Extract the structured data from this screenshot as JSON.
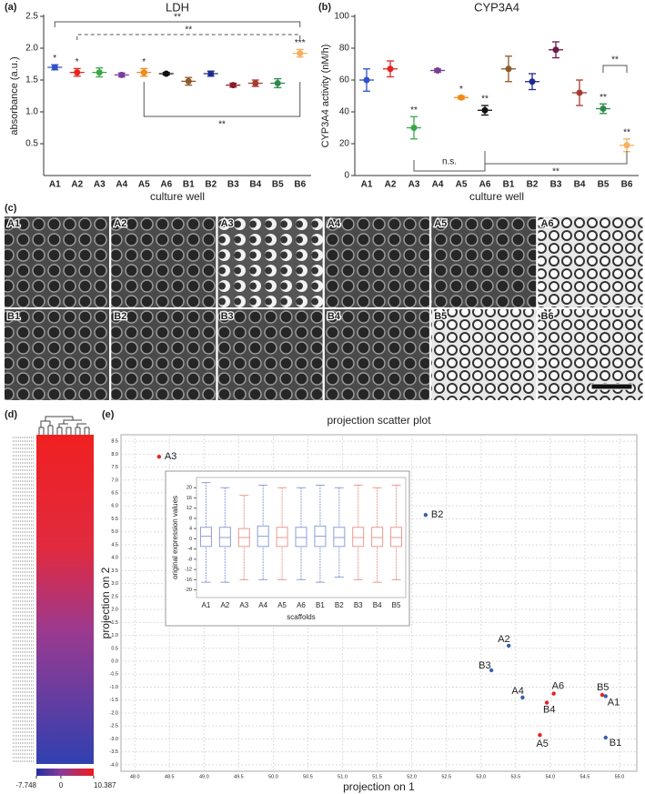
{
  "chart_data": [
    {
      "type": "errorbar",
      "panel": "(a)",
      "title": "LDH",
      "x_label": "culture well",
      "y_label": "absorbance (a.u.)",
      "categories": [
        "A1",
        "A2",
        "A3",
        "A4",
        "A5",
        "A6",
        "B1",
        "B2",
        "B3",
        "B4",
        "B5",
        "B6"
      ],
      "values": [
        1.7,
        1.62,
        1.62,
        1.58,
        1.62,
        1.6,
        1.48,
        1.6,
        1.42,
        1.45,
        1.45,
        1.92
      ],
      "errors": [
        0.04,
        0.06,
        0.07,
        0.03,
        0.06,
        0.02,
        0.06,
        0.04,
        0.03,
        0.05,
        0.07,
        0.06
      ],
      "colors": [
        "#2f52c8",
        "#e52420",
        "#3aa64a",
        "#7a3c9a",
        "#f08a1c",
        "#111111",
        "#8c5a2a",
        "#1e2a8c",
        "#8a1a2a",
        "#a83a30",
        "#2a8a4a",
        "#f5b060"
      ],
      "significance": [
        "*",
        "*",
        null,
        null,
        "*",
        null,
        null,
        null,
        null,
        null,
        null,
        "***"
      ],
      "brackets": [
        {
          "from": 0,
          "to": 11,
          "label": "**"
        },
        {
          "from": 1,
          "to": 11,
          "label": "**",
          "dashed": true
        },
        {
          "from": 4,
          "to": 11,
          "label": "**"
        }
      ],
      "ylim": [
        0,
        2.5
      ],
      "yticks": [
        0.5,
        {
          "value": 1,
          "label": "1.0"
        },
        1.5,
        {
          "value": 2,
          "label": "2.0"
        },
        2.5
      ]
    },
    {
      "type": "errorbar",
      "panel": "(b)",
      "title": "CYP3A4",
      "x_label": "culture well",
      "y_label": "CYP3A4 activity (nM/h)",
      "categories": [
        "A1",
        "A2",
        "A3",
        "A4",
        "A5",
        "A6",
        "B1",
        "B2",
        "B3",
        "B4",
        "B5",
        "B6"
      ],
      "values": [
        60,
        67,
        30,
        66,
        49,
        41,
        67,
        59,
        79,
        52,
        42,
        19
      ],
      "errors": [
        7,
        5,
        7,
        1,
        1,
        3,
        8,
        5,
        5,
        8,
        3,
        4
      ],
      "colors": [
        "#2f52c8",
        "#e52420",
        "#3aa64a",
        "#7a3c9a",
        "#f08a1c",
        "#111111",
        "#8c5a2a",
        "#1e2a8c",
        "#6a1a4a",
        "#a83a30",
        "#2a8a4a",
        "#f5b060"
      ],
      "significance": [
        null,
        null,
        "**",
        null,
        "*",
        "**",
        null,
        null,
        null,
        null,
        "**",
        "**"
      ],
      "brackets": [
        {
          "from": 2,
          "to": 5,
          "label": "n.s."
        },
        {
          "from": 5,
          "to": 11,
          "label": "**"
        },
        {
          "from": 10,
          "to": 11,
          "label": "**"
        }
      ],
      "ylim": [
        0,
        100
      ],
      "yticks": [
        0,
        20,
        40,
        60,
        80,
        100
      ]
    },
    {
      "type": "heatmap",
      "panel": "(d)",
      "colorbar_range": [
        -7.748,
        10.387
      ],
      "colorbar_ticks": [
        -7.748,
        0,
        10.387
      ]
    },
    {
      "type": "scatter",
      "panel": "(e)",
      "title": "projection  scatter plot",
      "x_label": "projection  on 1",
      "y_label": "projection  on 2",
      "labels": [
        "A3",
        "B2",
        "A2",
        "B3",
        "A4",
        "A6",
        "B4",
        "B5",
        "A1",
        "A5",
        "B1"
      ],
      "x": [
        48.35,
        52.2,
        53.4,
        53.15,
        53.6,
        54.05,
        53.95,
        54.75,
        54.8,
        53.85,
        54.8
      ],
      "values": [
        7.9,
        5.65,
        0.6,
        -0.35,
        -1.4,
        -1.25,
        -1.6,
        -1.3,
        -1.35,
        -2.85,
        -2.95
      ],
      "colors": [
        "#e52420",
        "#3a5fb0",
        "#3a5fb0",
        "#3a5fb0",
        "#3a5fb0",
        "#e52420",
        "#e52420",
        "#e52420",
        "#3a5fb0",
        "#e52420",
        "#3a5fb0"
      ],
      "grid": true,
      "xlim": [
        47.8,
        55.25
      ],
      "ylim": [
        -4.25,
        8.75
      ],
      "xticks": [
        {
          "value": 48,
          "label": "48.0"
        },
        48.5,
        {
          "value": 49,
          "label": "49.0"
        },
        49.5,
        {
          "value": 50,
          "label": "50.0"
        },
        50.5,
        {
          "value": 51,
          "label": "51.0"
        },
        51.5,
        {
          "value": 52,
          "label": "52.0"
        },
        52.5,
        {
          "value": 53,
          "label": "53.0"
        },
        53.5,
        {
          "value": 54,
          "label": "54.0"
        },
        54.5,
        {
          "value": 55,
          "label": "55.0"
        }
      ],
      "yticks": [
        {
          "value": -4,
          "label": "-4.0"
        },
        -3.5,
        {
          "value": -3,
          "label": "-3.0"
        },
        -2.5,
        {
          "value": -2,
          "label": "-2.0"
        },
        -1.5,
        {
          "value": -1,
          "label": "-1.0"
        },
        -0.5,
        {
          "value": 0,
          "label": "0.0"
        },
        0.5,
        {
          "value": 1,
          "label": "1.0"
        },
        1.5,
        {
          "value": 2,
          "label": "2.0"
        },
        2.5,
        {
          "value": 3,
          "label": "3.0"
        },
        3.5,
        {
          "value": 4,
          "label": "4.0"
        },
        4.5,
        {
          "value": 5,
          "label": "5.0"
        },
        5.5,
        {
          "value": 6,
          "label": "6.0"
        },
        6.5,
        {
          "value": 7,
          "label": "7.0"
        },
        7.5,
        {
          "value": 8,
          "label": "8.0"
        },
        8.5
      ]
    },
    {
      "type": "box",
      "x_label": "scaffolds",
      "y_label": "original expression values",
      "categories": [
        "A1",
        "A2",
        "A3",
        "A4",
        "A5",
        "A6",
        "B1",
        "B2",
        "B3",
        "B4",
        "B5"
      ],
      "colors": [
        "#8e9fd6",
        "#8e9fd6",
        "#e89a90",
        "#8e9fd6",
        "#e89a90",
        "#8e9fd6",
        "#8e9fd6",
        "#8e9fd6",
        "#e89a90",
        "#e89a90",
        "#e89a90"
      ],
      "min": [
        -17,
        -17,
        -16,
        -16,
        -16,
        -16,
        -17,
        -15,
        -16,
        -17,
        -16
      ],
      "q1": [
        -3,
        -3,
        -3,
        -3,
        -3,
        -3,
        -3,
        -3,
        -3,
        -3,
        -3
      ],
      "median": [
        1,
        0.5,
        0.5,
        1,
        0.5,
        0.5,
        1,
        0.5,
        0.5,
        0.5,
        0.5
      ],
      "q3": [
        4.5,
        4.5,
        4,
        5,
        4.5,
        4.5,
        5,
        4.5,
        4.5,
        4.5,
        4.5
      ],
      "max": [
        22,
        20,
        17,
        21,
        20,
        20,
        21,
        20,
        21,
        20,
        21
      ],
      "ylim": [
        -23,
        24
      ],
      "yticks": [
        -20,
        -16,
        -12,
        -8,
        -4,
        0,
        4,
        8,
        12,
        16,
        20
      ]
    }
  ],
  "micrographs": {
    "panel": "(c)",
    "tiles": [
      "A1",
      "A2",
      "A3",
      "A4",
      "A5",
      "A6",
      "B1",
      "B2",
      "B3",
      "B4",
      "B5",
      "B6"
    ]
  }
}
